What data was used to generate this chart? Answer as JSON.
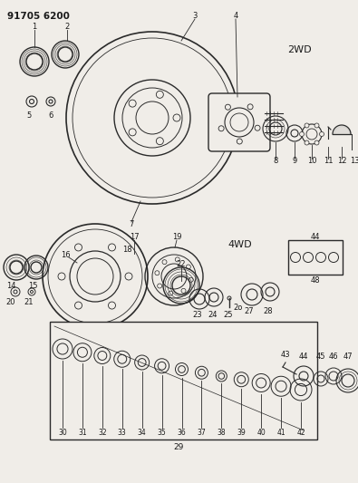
{
  "bg_color": "#f0ede8",
  "line_color": "#2a2a2a",
  "text_color": "#1a1a1a",
  "title": "91705 6200",
  "label_2wd": "2WD",
  "label_4wd": "4WD",
  "fig_width": 3.95,
  "fig_height": 5.33,
  "dpi": 100
}
